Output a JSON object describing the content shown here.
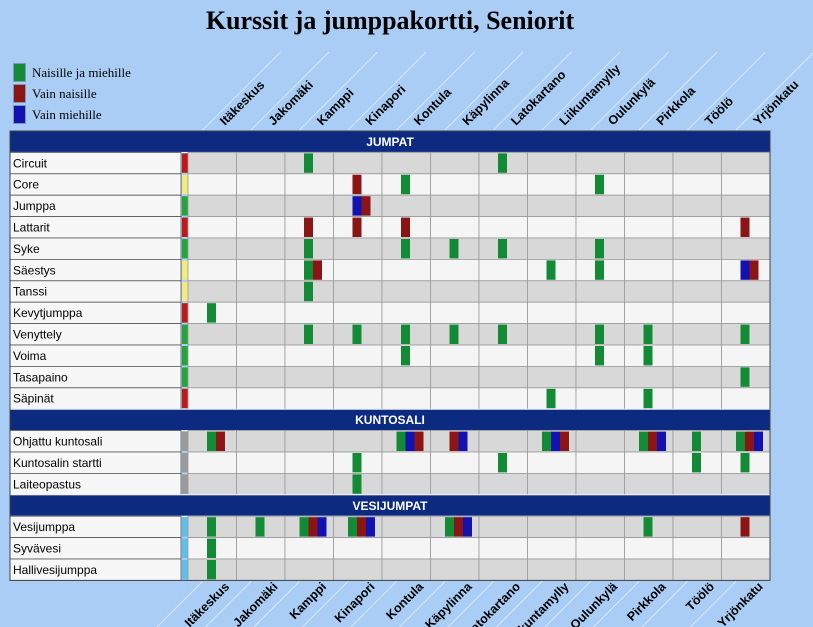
{
  "title": "Kurssit ja jumppakortti, Seniorit",
  "legend": [
    {
      "label": "Naisille ja miehille",
      "color": "#138a36"
    },
    {
      "label": "Vain naisille",
      "color": "#8b1414"
    },
    {
      "label": "Vain miehille",
      "color": "#1212b0"
    }
  ],
  "chart_data": {
    "type": "table",
    "columns": [
      "Itäkeskus",
      "Jakomäki",
      "Kamppi",
      "Kinapori",
      "Kontula",
      "Käpylinna",
      "Latokartano",
      "Liikuntamylly",
      "Oulunkylä",
      "Pirkkola",
      "Töölö",
      "Yrjönkatu"
    ],
    "category_colors": {
      "J": "#138a36",
      "N": "#8b1414",
      "M": "#1212b0"
    },
    "sections": [
      {
        "name": "JUMPAT",
        "rows": [
          {
            "label": "Circuit",
            "color": "#c01818",
            "cells": [
              "",
              "",
              "J",
              "",
              "",
              "",
              "J",
              "",
              "",
              "",
              "",
              ""
            ]
          },
          {
            "label": "Core",
            "color": "#f2ec7e",
            "cells": [
              "",
              "",
              "",
              "N",
              "J",
              "",
              "",
              "",
              "J",
              "",
              "",
              ""
            ]
          },
          {
            "label": "Jumppa",
            "color": "#22a53a",
            "cells": [
              "",
              "",
              "",
              "MN",
              "",
              "",
              "",
              "",
              "",
              "",
              "",
              ""
            ]
          },
          {
            "label": "Lattarit",
            "color": "#c01818",
            "cells": [
              "",
              "",
              "N",
              "N",
              "N",
              "",
              "",
              "",
              "",
              "",
              "",
              "N"
            ]
          },
          {
            "label": "Syke",
            "color": "#22a53a",
            "cells": [
              "",
              "",
              "J",
              "",
              "J",
              "J",
              "J",
              "",
              "J",
              "",
              "",
              ""
            ]
          },
          {
            "label": "Säestys",
            "color": "#f2ec7e",
            "cells": [
              "",
              "",
              "JN",
              "",
              "",
              "",
              "",
              "J",
              "J",
              "",
              "",
              "MN"
            ]
          },
          {
            "label": "Tanssi",
            "color": "#f2ec7e",
            "cells": [
              "",
              "",
              "J",
              "",
              "",
              "",
              "",
              "",
              "",
              "",
              "",
              ""
            ]
          },
          {
            "label": "Kevytjumppa",
            "color": "#c01818",
            "cells": [
              "J",
              "",
              "",
              "",
              "",
              "",
              "",
              "",
              "",
              "",
              "",
              ""
            ]
          },
          {
            "label": "Venyttely",
            "color": "#22a53a",
            "cells": [
              "",
              "",
              "J",
              "J",
              "J",
              "J",
              "J",
              "",
              "J",
              "J",
              "",
              "J"
            ]
          },
          {
            "label": "Voima",
            "color": "#22a53a",
            "cells": [
              "",
              "",
              "",
              "",
              "J",
              "",
              "",
              "",
              "J",
              "J",
              "",
              ""
            ]
          },
          {
            "label": "Tasapaino",
            "color": "#22a53a",
            "cells": [
              "",
              "",
              "",
              "",
              "",
              "",
              "",
              "",
              "",
              "",
              "",
              "J"
            ]
          },
          {
            "label": "Säpinät",
            "color": "#c01818",
            "cells": [
              "",
              "",
              "",
              "",
              "",
              "",
              "",
              "J",
              "",
              "J",
              "",
              ""
            ]
          }
        ]
      },
      {
        "name": "KUNTOSALI",
        "rows": [
          {
            "label": "Ohjattu kuntosali",
            "color": "#9a9a9a",
            "cells": [
              "JN",
              "",
              "",
              "",
              "JMN",
              "NM",
              "",
              "JMN",
              "",
              "JNM",
              "J",
              "JNM"
            ]
          },
          {
            "label": "Kuntosalin startti",
            "color": "#9a9a9a",
            "cells": [
              "",
              "",
              "",
              "J",
              "",
              "",
              "J",
              "",
              "",
              "",
              "J",
              "J"
            ]
          },
          {
            "label": "Laiteopastus",
            "color": "#9a9a9a",
            "cells": [
              "",
              "",
              "",
              "J",
              "",
              "",
              "",
              "",
              "",
              "",
              "",
              ""
            ]
          }
        ]
      },
      {
        "name": "VESIJUMPAT",
        "rows": [
          {
            "label": "Vesijumppa",
            "color": "#5cc0ea",
            "cells": [
              "J",
              "J",
              "JNM",
              "JNM",
              "",
              "JNM",
              "",
              "",
              "",
              "J",
              "",
              "N"
            ]
          },
          {
            "label": "Syvävesi",
            "color": "#5cc0ea",
            "cells": [
              "J",
              "",
              "",
              "",
              "",
              "",
              "",
              "",
              "",
              "",
              "",
              ""
            ]
          },
          {
            "label": "Hallivesijumppa",
            "color": "#5cc0ea",
            "cells": [
              "J",
              "",
              "",
              "",
              "",
              "",
              "",
              "",
              "",
              "",
              "",
              ""
            ]
          }
        ]
      }
    ]
  }
}
